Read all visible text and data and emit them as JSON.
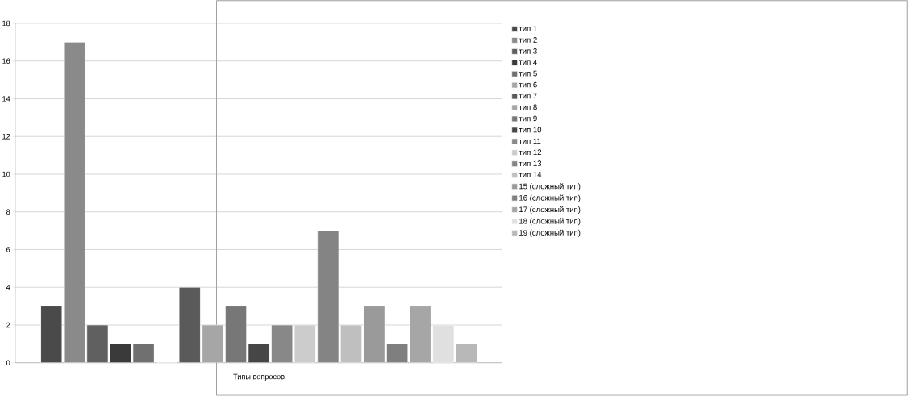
{
  "chart_data": {
    "type": "bar",
    "categories": [
      "Типы вопросов"
    ],
    "series": [
      {
        "name": "тип 1",
        "color": "#4a4a4a",
        "values": [
          3
        ]
      },
      {
        "name": "тип 2",
        "color": "#8a8a8a",
        "values": [
          17
        ]
      },
      {
        "name": "тип 3",
        "color": "#606060",
        "values": [
          2
        ]
      },
      {
        "name": "тип 4",
        "color": "#3a3a3a",
        "values": [
          1
        ]
      },
      {
        "name": "тип 5",
        "color": "#707070",
        "values": [
          1
        ]
      },
      {
        "name": "тип 6",
        "color": "#a6a6a6",
        "values": [
          0
        ]
      },
      {
        "name": "тип 7",
        "color": "#5a5a5a",
        "values": [
          4
        ]
      },
      {
        "name": "тип 8",
        "color": "#a6a6a6",
        "values": [
          2
        ]
      },
      {
        "name": "тип 9",
        "color": "#777777",
        "values": [
          3
        ]
      },
      {
        "name": "тип 10",
        "color": "#464646",
        "values": [
          1
        ]
      },
      {
        "name": "тип 11",
        "color": "#888888",
        "values": [
          2
        ]
      },
      {
        "name": "тип 12",
        "color": "#cccccc",
        "values": [
          2
        ]
      },
      {
        "name": "тип 13",
        "color": "#848484",
        "values": [
          7
        ]
      },
      {
        "name": "тип 14",
        "color": "#bfbfbf",
        "values": [
          2
        ]
      },
      {
        "name": "15 (сложный тип)",
        "color": "#9a9a9a",
        "values": [
          3
        ]
      },
      {
        "name": "16 (сложный тип)",
        "color": "#7f7f7f",
        "values": [
          1
        ]
      },
      {
        "name": "17 (сложный тип)",
        "color": "#a6a6a6",
        "values": [
          3
        ]
      },
      {
        "name": "18 (сложный тип)",
        "color": "#e0e0e0",
        "values": [
          2
        ]
      },
      {
        "name": "19 (сложный тип)",
        "color": "#b8b8b8",
        "values": [
          1
        ]
      }
    ],
    "ylim": [
      0,
      18
    ],
    "yticks": [
      0,
      2,
      4,
      6,
      8,
      10,
      12,
      14,
      16,
      18
    ],
    "grid": "y",
    "legend": "right"
  }
}
